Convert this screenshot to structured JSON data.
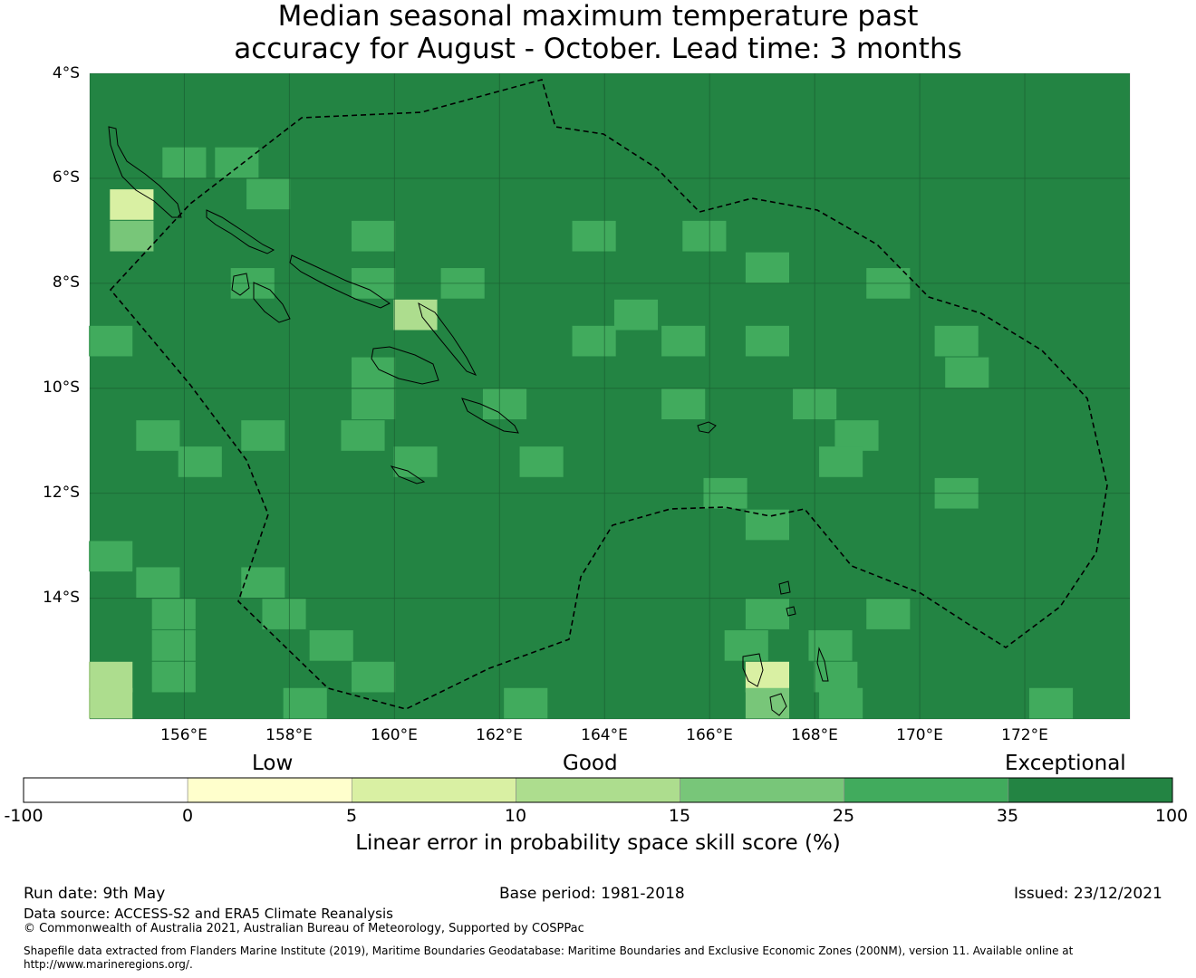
{
  "title": {
    "line1": "Median seasonal maximum temperature past",
    "line2": "accuracy for August - October. Lead time: 3 months"
  },
  "axes": {
    "lat_labels": [
      "4°S",
      "6°S",
      "8°S",
      "10°S",
      "12°S",
      "14°S"
    ],
    "lon_labels": [
      "156°E",
      "158°E",
      "160°E",
      "162°E",
      "164°E",
      "166°E",
      "168°E",
      "170°E",
      "172°E"
    ],
    "lon_range": [
      154.2,
      174.0
    ],
    "lat_range": [
      -4.0,
      -16.3
    ]
  },
  "legend": {
    "category_labels": [
      "Low",
      "Good",
      "Exceptional"
    ],
    "ticks": [
      "-100",
      "0",
      "5",
      "10",
      "15",
      "25",
      "35",
      "100"
    ],
    "colors": [
      "#ffffff",
      "#ffffcc",
      "#d9f0a3",
      "#addd8e",
      "#78c679",
      "#41ab5d",
      "#238443"
    ],
    "title": "Linear error in probability space skill score (%)"
  },
  "chart_data": {
    "type": "heatmap",
    "title": "Median seasonal maximum temperature past accuracy for August - October. Lead time: 3 months",
    "colorbar_label": "Linear error in probability space skill score (%)",
    "bins": [
      -100,
      0,
      5,
      10,
      15,
      25,
      35,
      100
    ],
    "default_class": 6,
    "cell_size_deg": 0.83,
    "grid_origin_lon": 154.2,
    "grid_origin_lat": -4.0,
    "cells": [
      {
        "lon": 155.0,
        "lat": -6.5,
        "class": 2
      },
      {
        "lon": 155.0,
        "lat": -7.1,
        "class": 4
      },
      {
        "lon": 156.0,
        "lat": -5.7,
        "class": 5
      },
      {
        "lon": 157.0,
        "lat": -5.7,
        "class": 5
      },
      {
        "lon": 157.6,
        "lat": -6.3,
        "class": 5
      },
      {
        "lon": 159.6,
        "lat": -7.1,
        "class": 5
      },
      {
        "lon": 163.8,
        "lat": -7.1,
        "class": 5
      },
      {
        "lon": 165.9,
        "lat": -7.1,
        "class": 5
      },
      {
        "lon": 167.1,
        "lat": -7.7,
        "class": 5
      },
      {
        "lon": 157.3,
        "lat": -8.0,
        "class": 5
      },
      {
        "lon": 159.6,
        "lat": -8.0,
        "class": 5
      },
      {
        "lon": 161.3,
        "lat": -8.0,
        "class": 5
      },
      {
        "lon": 169.4,
        "lat": -8.0,
        "class": 5
      },
      {
        "lon": 160.4,
        "lat": -8.6,
        "class": 3
      },
      {
        "lon": 164.6,
        "lat": -8.6,
        "class": 5
      },
      {
        "lon": 154.6,
        "lat": -9.1,
        "class": 5
      },
      {
        "lon": 163.8,
        "lat": -9.1,
        "class": 5
      },
      {
        "lon": 165.5,
        "lat": -9.1,
        "class": 5
      },
      {
        "lon": 167.1,
        "lat": -9.1,
        "class": 5
      },
      {
        "lon": 170.7,
        "lat": -9.1,
        "class": 5
      },
      {
        "lon": 159.6,
        "lat": -9.7,
        "class": 5
      },
      {
        "lon": 170.9,
        "lat": -9.7,
        "class": 5
      },
      {
        "lon": 159.6,
        "lat": -10.3,
        "class": 5
      },
      {
        "lon": 162.1,
        "lat": -10.3,
        "class": 5
      },
      {
        "lon": 165.5,
        "lat": -10.3,
        "class": 5
      },
      {
        "lon": 168.0,
        "lat": -10.3,
        "class": 5
      },
      {
        "lon": 155.5,
        "lat": -10.9,
        "class": 5
      },
      {
        "lon": 157.5,
        "lat": -10.9,
        "class": 5
      },
      {
        "lon": 159.4,
        "lat": -10.9,
        "class": 5
      },
      {
        "lon": 168.8,
        "lat": -10.9,
        "class": 5
      },
      {
        "lon": 156.3,
        "lat": -11.4,
        "class": 5
      },
      {
        "lon": 160.4,
        "lat": -11.4,
        "class": 5
      },
      {
        "lon": 162.8,
        "lat": -11.4,
        "class": 5
      },
      {
        "lon": 168.5,
        "lat": -11.4,
        "class": 5
      },
      {
        "lon": 166.3,
        "lat": -12.0,
        "class": 5
      },
      {
        "lon": 170.7,
        "lat": -12.0,
        "class": 5
      },
      {
        "lon": 167.1,
        "lat": -12.6,
        "class": 5
      },
      {
        "lon": 154.6,
        "lat": -13.2,
        "class": 5
      },
      {
        "lon": 155.5,
        "lat": -13.7,
        "class": 5
      },
      {
        "lon": 157.5,
        "lat": -13.7,
        "class": 5
      },
      {
        "lon": 155.8,
        "lat": -14.3,
        "class": 5
      },
      {
        "lon": 157.9,
        "lat": -14.3,
        "class": 5
      },
      {
        "lon": 167.1,
        "lat": -14.3,
        "class": 5
      },
      {
        "lon": 169.4,
        "lat": -14.3,
        "class": 5
      },
      {
        "lon": 155.8,
        "lat": -14.9,
        "class": 5
      },
      {
        "lon": 158.8,
        "lat": -14.9,
        "class": 5
      },
      {
        "lon": 166.7,
        "lat": -14.9,
        "class": 5
      },
      {
        "lon": 168.3,
        "lat": -14.9,
        "class": 5
      },
      {
        "lon": 154.6,
        "lat": -15.5,
        "class": 3
      },
      {
        "lon": 155.8,
        "lat": -15.5,
        "class": 5
      },
      {
        "lon": 159.6,
        "lat": -15.5,
        "class": 5
      },
      {
        "lon": 167.1,
        "lat": -15.5,
        "class": 2
      },
      {
        "lon": 168.4,
        "lat": -15.5,
        "class": 5
      },
      {
        "lon": 154.6,
        "lat": -16.0,
        "class": 3
      },
      {
        "lon": 158.3,
        "lat": -16.0,
        "class": 5
      },
      {
        "lon": 162.5,
        "lat": -16.0,
        "class": 5
      },
      {
        "lon": 167.1,
        "lat": -16.0,
        "class": 4
      },
      {
        "lon": 168.5,
        "lat": -16.0,
        "class": 5
      },
      {
        "lon": 172.5,
        "lat": -16.0,
        "class": 5
      }
    ]
  },
  "footer": {
    "run_date": "Run date: 9th May",
    "base_period": "Base period: 1981-2018",
    "issued": "Issued: 23/12/2021",
    "data_source": "Data source: ACCESS-S2 and ERA5 Climate Reanalysis",
    "copyright": "© Commonwealth of Australia 2021, Australian Bureau of Meteorology, Supported by COSPPac",
    "shapefile_line1": "Shapefile data extracted from Flanders Marine Institute (2019), Maritime Boundaries Geodatabase: Maritime Boundaries and Exclusive Economic Zones (200NM), version 11. Available online at",
    "shapefile_line2": "http://www.marineregions.org/."
  }
}
